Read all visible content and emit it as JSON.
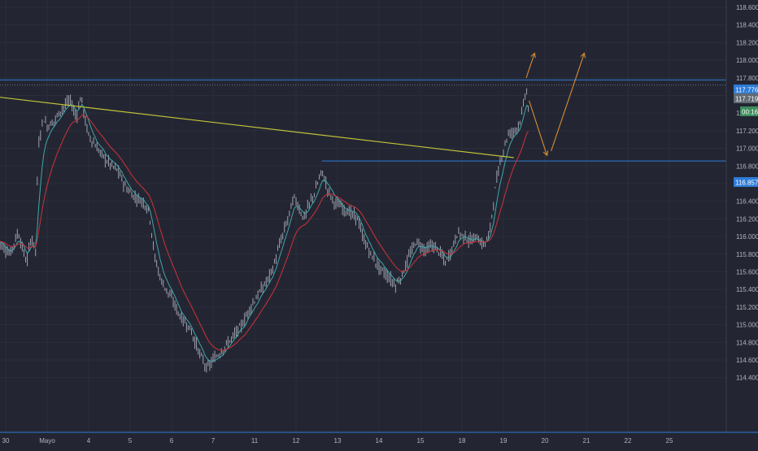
{
  "chart_data": {
    "type": "candlestick",
    "title": "",
    "xlabel": "",
    "ylabel": "",
    "ylim": [
      114.36,
      118.66
    ],
    "y_ticks": [
      "118.600",
      "118.400",
      "118.200",
      "118.000",
      "117.800",
      "117.600",
      "117.400",
      "117.200",
      "117.000",
      "116.800",
      "116.600",
      "116.400",
      "116.200",
      "116.000",
      "115.800",
      "115.600",
      "115.400",
      "115.200",
      "115.000",
      "114.800",
      "114.600",
      "114.400"
    ],
    "x_ticks": [
      {
        "label": "30",
        "day": 0
      },
      {
        "label": "Mayo",
        "day": 1
      },
      {
        "label": "4",
        "day": 2
      },
      {
        "label": "5",
        "day": 3
      },
      {
        "label": "6",
        "day": 4
      },
      {
        "label": "7",
        "day": 5
      },
      {
        "label": "11",
        "day": 6
      },
      {
        "label": "12",
        "day": 7
      },
      {
        "label": "13",
        "day": 8
      },
      {
        "label": "14",
        "day": 9
      },
      {
        "label": "15",
        "day": 10
      },
      {
        "label": "18",
        "day": 11
      },
      {
        "label": "19",
        "day": 12
      },
      {
        "label": "20",
        "day": 13
      },
      {
        "label": "21",
        "day": 14
      },
      {
        "label": "22",
        "day": 15
      },
      {
        "label": "25",
        "day": 16
      }
    ],
    "price_path": [
      [
        -0.2,
        115.95
      ],
      [
        0.1,
        115.8
      ],
      [
        0.3,
        116.05
      ],
      [
        0.5,
        115.7
      ],
      [
        0.62,
        116.0
      ],
      [
        0.72,
        115.85
      ],
      [
        0.78,
        117.0
      ],
      [
        0.9,
        117.35
      ],
      [
        1.0,
        117.25
      ],
      [
        1.15,
        117.3
      ],
      [
        1.35,
        117.45
      ],
      [
        1.55,
        117.55
      ],
      [
        1.7,
        117.35
      ],
      [
        1.82,
        117.6
      ],
      [
        1.92,
        117.3
      ],
      [
        2.0,
        117.15
      ],
      [
        2.2,
        117.0
      ],
      [
        2.45,
        116.85
      ],
      [
        2.7,
        116.75
      ],
      [
        2.9,
        116.55
      ],
      [
        3.1,
        116.45
      ],
      [
        3.3,
        116.4
      ],
      [
        3.45,
        116.3
      ],
      [
        3.6,
        115.75
      ],
      [
        3.75,
        115.5
      ],
      [
        4.0,
        115.3
      ],
      [
        4.2,
        115.1
      ],
      [
        4.45,
        114.95
      ],
      [
        4.65,
        114.7
      ],
      [
        4.85,
        114.5
      ],
      [
        5.0,
        114.6
      ],
      [
        5.2,
        114.7
      ],
      [
        5.45,
        114.85
      ],
      [
        5.7,
        115.0
      ],
      [
        5.9,
        115.2
      ],
      [
        6.1,
        115.35
      ],
      [
        6.3,
        115.5
      ],
      [
        6.45,
        115.65
      ],
      [
        6.6,
        115.9
      ],
      [
        6.8,
        116.2
      ],
      [
        6.95,
        116.45
      ],
      [
        7.05,
        116.35
      ],
      [
        7.18,
        116.2
      ],
      [
        7.3,
        116.35
      ],
      [
        7.45,
        116.5
      ],
      [
        7.62,
        116.75
      ],
      [
        7.75,
        116.55
      ],
      [
        7.9,
        116.4
      ],
      [
        8.05,
        116.35
      ],
      [
        8.2,
        116.3
      ],
      [
        8.35,
        116.25
      ],
      [
        8.5,
        116.2
      ],
      [
        8.6,
        116.0
      ],
      [
        8.8,
        115.8
      ],
      [
        9.0,
        115.65
      ],
      [
        9.2,
        115.55
      ],
      [
        9.4,
        115.45
      ],
      [
        9.55,
        115.55
      ],
      [
        9.7,
        115.75
      ],
      [
        9.9,
        115.95
      ],
      [
        10.1,
        115.85
      ],
      [
        10.3,
        115.9
      ],
      [
        10.5,
        115.8
      ],
      [
        10.6,
        115.7
      ],
      [
        10.75,
        115.85
      ],
      [
        10.9,
        116.05
      ],
      [
        11.05,
        116.0
      ],
      [
        11.2,
        115.95
      ],
      [
        11.35,
        116.0
      ],
      [
        11.5,
        115.9
      ],
      [
        11.65,
        116.0
      ],
      [
        11.82,
        116.6
      ],
      [
        11.95,
        116.9
      ],
      [
        12.1,
        117.15
      ],
      [
        12.25,
        117.2
      ],
      [
        12.35,
        117.25
      ],
      [
        12.45,
        117.4
      ],
      [
        12.55,
        117.7
      ],
      [
        12.6,
        117.45
      ]
    ],
    "resistance_level": 117.776,
    "current_price": 117.719,
    "support_level": 116.857,
    "trendline": {
      "start": [
        -0.5,
        117.6
      ],
      "end": [
        12.25,
        116.895
      ]
    },
    "projections": [
      {
        "from": [
          12.55,
          117.8
        ],
        "to": [
          12.75,
          118.08
        ]
      },
      {
        "from": [
          12.62,
          117.54
        ],
        "to": [
          13.05,
          116.92
        ]
      },
      {
        "from": [
          13.15,
          116.97
        ],
        "to": [
          13.95,
          118.08
        ]
      }
    ],
    "price_labels": {
      "resistance": "117.776",
      "current": "117.719",
      "countdown": "00:16",
      "support": "116.857"
    },
    "colors": {
      "background": "#232632",
      "grid": "#2b2f3b",
      "candle": "#b5b7c4",
      "ema_fast": "#3fa8ac",
      "ema_slow": "#d0313a",
      "trendline": "#c3c23a",
      "level": "#2e7bd8",
      "projection": "#d68b33",
      "axis_text": "#b2b5be",
      "label_current_bg": "#616a72",
      "label_countdown_bg": "#3c8c5c"
    }
  }
}
